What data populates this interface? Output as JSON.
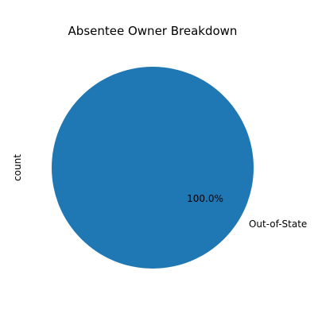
{
  "chart_data": {
    "type": "pie",
    "title": "Absentee Owner Breakdown",
    "ylabel": "count",
    "slices": [
      {
        "label": "Out-of-State",
        "value": 1,
        "percent_label": "100.0%",
        "color": "#1f77b4"
      }
    ]
  }
}
